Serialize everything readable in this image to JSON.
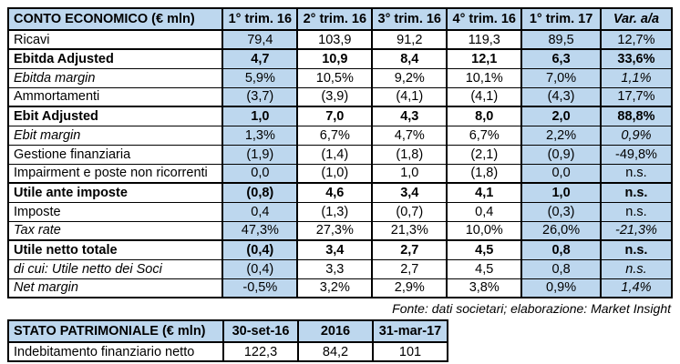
{
  "colors": {
    "highlight": "#BDD7EE",
    "border": "#000000",
    "text": "#000000"
  },
  "table1": {
    "header": [
      "CONTO ECONOMICO (€ mln)",
      "1° trim. 16",
      "2° trim. 16",
      "3° trim. 16",
      "4° trim. 16",
      "1° trim. 17",
      "Var. a/a"
    ],
    "rows": [
      {
        "label": "Ricavi",
        "style": "normal",
        "values": [
          "79,4",
          "103,9",
          "91,2",
          "119,3",
          "89,5",
          "12,7%"
        ]
      },
      {
        "label": "Ebitda Adjusted",
        "style": "bold",
        "values": [
          "4,7",
          "10,9",
          "8,4",
          "12,1",
          "6,3",
          "33,6%"
        ]
      },
      {
        "label": "Ebitda margin",
        "style": "italic",
        "values": [
          "5,9%",
          "10,5%",
          "9,2%",
          "10,1%",
          "7,0%",
          "1,1%"
        ]
      },
      {
        "label": "Ammortamenti",
        "style": "normal",
        "values": [
          "(3,7)",
          "(3,9)",
          "(4,1)",
          "(4,1)",
          "(4,3)",
          "17,7%"
        ]
      },
      {
        "label": "Ebit Adjusted",
        "style": "bold",
        "values": [
          "1,0",
          "7,0",
          "4,3",
          "8,0",
          "2,0",
          "88,8%"
        ]
      },
      {
        "label": "Ebit margin",
        "style": "italic",
        "values": [
          "1,3%",
          "6,7%",
          "4,7%",
          "6,7%",
          "2,2%",
          "0,9%"
        ]
      },
      {
        "label": "Gestione finanziaria",
        "style": "normal",
        "values": [
          "(1,9)",
          "(1,4)",
          "(1,8)",
          "(2,1)",
          "(0,9)",
          "-49,8%"
        ]
      },
      {
        "label": "Impairment e poste non ricorrenti",
        "style": "normal",
        "values": [
          "0,0",
          "(1,0)",
          "1,0",
          "(1,8)",
          "0,0",
          "n.s."
        ]
      },
      {
        "label": "Utile ante imposte",
        "style": "bold",
        "values": [
          "(0,8)",
          "4,6",
          "3,4",
          "4,1",
          "1,0",
          "n.s."
        ]
      },
      {
        "label": "Imposte",
        "style": "normal",
        "values": [
          "0,4",
          "(1,3)",
          "(0,7)",
          "0,4",
          "(0,3)",
          "n.s."
        ]
      },
      {
        "label": "Tax rate",
        "style": "italic",
        "values": [
          "47,3%",
          "27,3%",
          "21,3%",
          "10,0%",
          "26,0%",
          "-21,3%"
        ]
      },
      {
        "label": "Utile netto totale",
        "style": "bold",
        "values": [
          "(0,4)",
          "3,4",
          "2,7",
          "4,5",
          "0,8",
          "n.s."
        ]
      },
      {
        "label": "di cui: Utile netto dei Soci",
        "style": "italic",
        "values": [
          "(0,4)",
          "3,3",
          "2,7",
          "4,5",
          "0,8",
          "n.s."
        ]
      },
      {
        "label": "Net margin",
        "style": "italic",
        "values": [
          "-0,5%",
          "3,2%",
          "2,9%",
          "3,8%",
          "0,9%",
          "1,4%"
        ]
      }
    ],
    "highlighted_value_columns": [
      0,
      4,
      5
    ]
  },
  "source_note": "Fonte: dati societari; elaborazione: Market Insight",
  "table2": {
    "header": [
      "STATO PATRIMONIALE (€ mln)",
      "30-set-16",
      "2016",
      "31-mar-17"
    ],
    "rows": [
      {
        "label": "Indebitamento finanziario netto",
        "style": "normal",
        "values": [
          "122,3",
          "84,2",
          "101"
        ]
      }
    ],
    "highlighted_value_columns": []
  }
}
